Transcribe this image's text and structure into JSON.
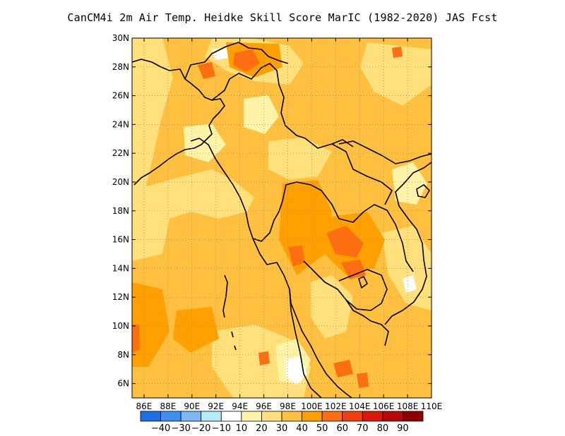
{
  "title": "CanCM4i  2m Air Temp. Heidke Skill Score MarIC (1982-2020) JAS Fcst",
  "map": {
    "lon_range": [
      85,
      110
    ],
    "lat_range": [
      5,
      30
    ],
    "lon_ticks": [
      "86E",
      "88E",
      "90E",
      "92E",
      "94E",
      "96E",
      "98E",
      "100E",
      "102E",
      "104E",
      "106E",
      "108E",
      "110E"
    ],
    "lat_ticks": [
      "6N",
      "8N",
      "10N",
      "12N",
      "14N",
      "16N",
      "18N",
      "20N",
      "22N",
      "24N",
      "26N",
      "28N",
      "30N"
    ],
    "grid": "dotted"
  },
  "colorbar": {
    "labels": [
      "-40",
      "-30",
      "-20",
      "-10",
      "10",
      "20",
      "30",
      "40",
      "50",
      "60",
      "70",
      "80",
      "90"
    ],
    "colors": [
      "#1e6fe6",
      "#3d8ff0",
      "#7cb8f5",
      "#b4ecf5",
      "#ffffff",
      "#fff3a8",
      "#ffe07a",
      "#ffc040",
      "#ffa000",
      "#ff6e10",
      "#f04010",
      "#d81808",
      "#b80808",
      "#900000"
    ]
  }
}
